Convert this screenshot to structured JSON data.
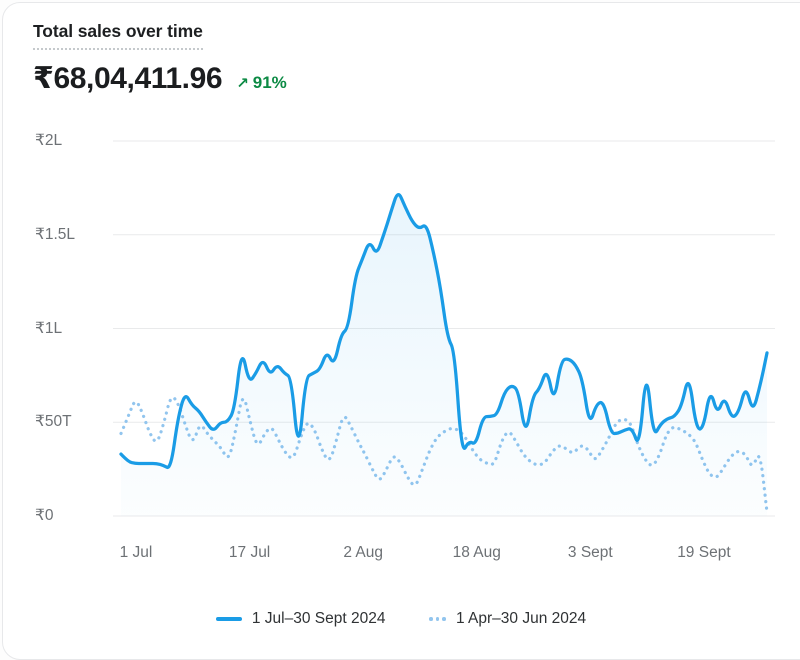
{
  "card": {
    "title": "Total sales over time",
    "value": "₹68,04,411.96",
    "delta": {
      "arrow": "↗",
      "text": "91%",
      "direction": "up"
    }
  },
  "chart_data": {
    "type": "line",
    "title": "Total sales over time",
    "value_unit": "values in thousands of INR (T); 1L = 100T",
    "grid": true,
    "legend_position": "bottom",
    "y_axis": {
      "tick_labels": [
        "₹0",
        "₹50T",
        "₹1L",
        "₹1.5L",
        "₹2L"
      ],
      "tick_values_T": [
        0,
        50,
        100,
        150,
        200
      ],
      "min_T": 0,
      "max_T": 200
    },
    "x_axis": {
      "tick_labels": [
        "1 Jul",
        "17 Jul",
        "2 Aug",
        "18 Aug",
        "3 Sept",
        "19 Sept"
      ],
      "tick_days": [
        0,
        16,
        32,
        48,
        64,
        80
      ]
    },
    "series": [
      {
        "name": "1 Jul–30 Sept 2024",
        "style": "solid",
        "color": "#1a9ce6",
        "area_fill": true,
        "values_T": [
          33,
          29,
          28,
          28,
          28,
          28,
          27,
          25,
          52,
          66,
          59,
          56,
          50,
          45,
          50,
          50,
          57,
          90,
          71,
          76,
          84,
          75,
          81,
          76,
          74,
          32,
          74,
          76,
          78,
          88,
          80,
          97,
          100,
          128,
          137,
          147,
          139,
          150,
          162,
          174,
          165,
          157,
          153,
          156,
          141,
          122,
          95,
          88,
          33,
          40,
          38,
          53,
          53,
          54,
          66,
          70,
          67,
          42,
          64,
          68,
          79,
          60,
          83,
          84,
          81,
          73,
          48,
          60,
          61,
          44,
          44,
          46,
          47,
          36,
          80,
          42,
          49,
          52,
          53,
          59,
          76,
          47,
          46,
          68,
          54,
          64,
          52,
          55,
          70,
          55,
          69,
          87
        ]
      },
      {
        "name": "1 Apr–30 Jun 2024",
        "style": "dotted",
        "color": "#92c5ee",
        "area_fill": false,
        "values_T": [
          44,
          53,
          63,
          55,
          44,
          38,
          50,
          65,
          60,
          48,
          38,
          50,
          44,
          40,
          36,
          29,
          46,
          67,
          50,
          36,
          44,
          48,
          40,
          33,
          30,
          42,
          51,
          46,
          35,
          28,
          40,
          55,
          48,
          40,
          33,
          25,
          18,
          25,
          33,
          28,
          20,
          15,
          25,
          35,
          42,
          45,
          47,
          46,
          42,
          35,
          30,
          28,
          27,
          40,
          46,
          40,
          33,
          29,
          27,
          28,
          34,
          38,
          36,
          33,
          38,
          36,
          29,
          35,
          42,
          50,
          52,
          50,
          38,
          30,
          26,
          32,
          44,
          48,
          46,
          44,
          40,
          30,
          22,
          20,
          26,
          32,
          35,
          33,
          25,
          36,
          2
        ]
      }
    ]
  },
  "colors": {
    "accent_blue": "#1a9ce6",
    "comparison_blue": "#92c5ee",
    "delta_green": "#0c8a44",
    "grid_line": "#e9eaeb",
    "axis_text": "#6d7175",
    "title_text": "#1d1f21"
  }
}
